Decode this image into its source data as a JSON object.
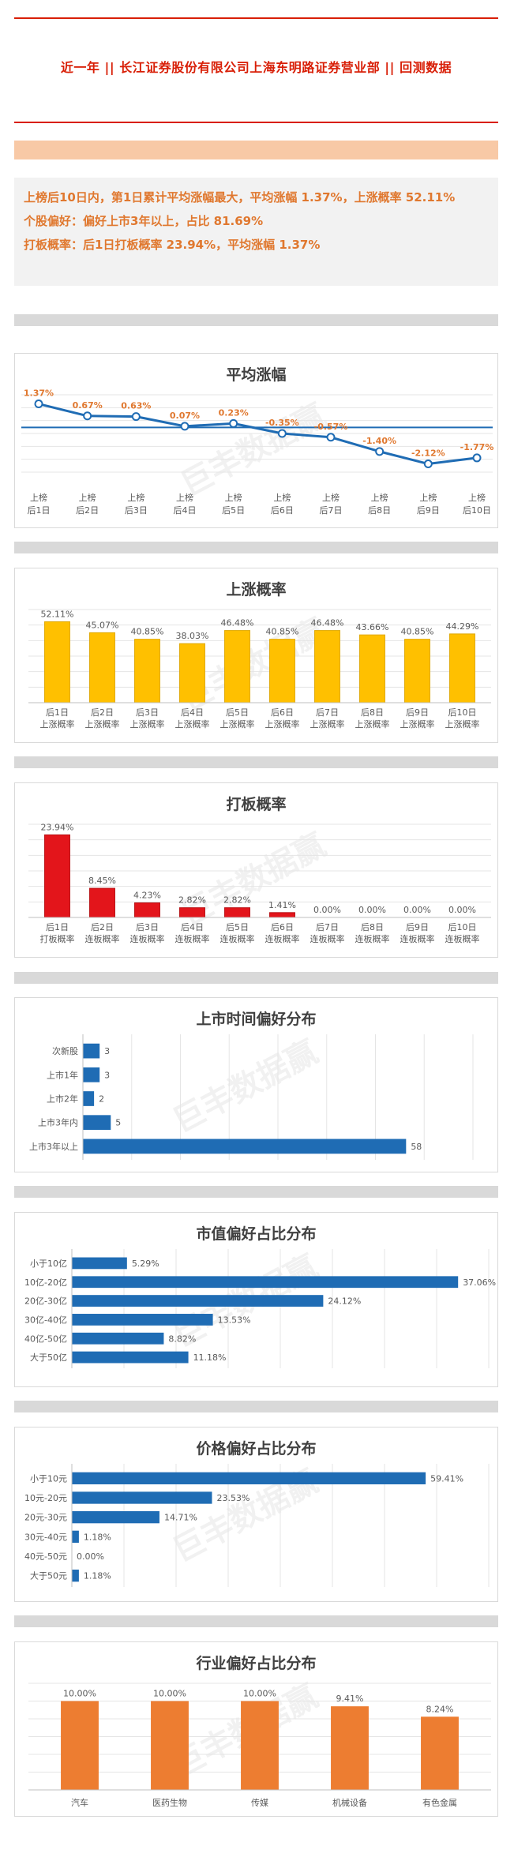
{
  "header": {
    "title": "近一年  ||  长江证券股份有限公司上海东明路证券营业部  ||  回测数据"
  },
  "summary": {
    "line1": "上榜后10日内，第1日累计平均涨幅最大，平均涨幅 1.37%，上涨概率 52.11%",
    "line2": "个股偏好：偏好上市3年以上，占比 81.69%",
    "line3": "打板概率：后1日打板概率 23.94%，平均涨幅 1.37%"
  },
  "watermark": "巨丰数据赢",
  "colors": {
    "accent_red": "#d81e06",
    "orange_text": "#e0782f",
    "line_blue": "#1f6cb4",
    "bar_yellow": "#ffc000",
    "bar_red": "#e3151b",
    "bar_blue": "#1f6cb4",
    "bar_orange": "#ed7d31"
  },
  "chart_data": [
    {
      "id": "avg-rise",
      "type": "line",
      "title": "平均涨幅",
      "categories": [
        [
          "上榜",
          "后1日"
        ],
        [
          "上榜",
          "后2日"
        ],
        [
          "上榜",
          "后3日"
        ],
        [
          "上榜",
          "后4日"
        ],
        [
          "上榜",
          "后5日"
        ],
        [
          "上榜",
          "后6日"
        ],
        [
          "上榜",
          "后7日"
        ],
        [
          "上榜",
          "后8日"
        ],
        [
          "上榜",
          "后9日"
        ],
        [
          "上榜",
          "后10日"
        ]
      ],
      "values": [
        1.37,
        0.67,
        0.63,
        0.07,
        0.23,
        -0.35,
        -0.57,
        -1.4,
        -2.12,
        -1.77
      ],
      "labels": [
        "1.37%",
        "0.67%",
        "0.63%",
        "0.07%",
        "0.23%",
        "-0.35%",
        "-0.57%",
        "-1.40%",
        "-2.12%",
        "-1.77%"
      ],
      "baseline": 0,
      "ylim": [
        -2.6,
        1.9
      ]
    },
    {
      "id": "up-prob",
      "type": "bar",
      "title": "上涨概率",
      "categories": [
        [
          "后1日",
          "上涨概率"
        ],
        [
          "后2日",
          "上涨概率"
        ],
        [
          "后3日",
          "上涨概率"
        ],
        [
          "后4日",
          "上涨概率"
        ],
        [
          "后5日",
          "上涨概率"
        ],
        [
          "后6日",
          "上涨概率"
        ],
        [
          "后7日",
          "上涨概率"
        ],
        [
          "后8日",
          "上涨概率"
        ],
        [
          "后9日",
          "上涨概率"
        ],
        [
          "后10日",
          "上涨概率"
        ]
      ],
      "values": [
        52.11,
        45.07,
        40.85,
        38.03,
        46.48,
        40.85,
        46.48,
        43.66,
        40.85,
        44.29
      ],
      "labels": [
        "52.11%",
        "45.07%",
        "40.85%",
        "38.03%",
        "46.48%",
        "40.85%",
        "46.48%",
        "43.66%",
        "40.85%",
        "44.29%"
      ],
      "ylim": [
        0,
        60
      ]
    },
    {
      "id": "board-prob",
      "type": "bar",
      "title": "打板概率",
      "categories": [
        [
          "后1日",
          "打板概率"
        ],
        [
          "后2日",
          "连板概率"
        ],
        [
          "后3日",
          "连板概率"
        ],
        [
          "后4日",
          "连板概率"
        ],
        [
          "后5日",
          "连板概率"
        ],
        [
          "后6日",
          "连板概率"
        ],
        [
          "后7日",
          "连板概率"
        ],
        [
          "后8日",
          "连板概率"
        ],
        [
          "后9日",
          "连板概率"
        ],
        [
          "后10日",
          "连板概率"
        ]
      ],
      "values": [
        23.94,
        8.45,
        4.23,
        2.82,
        2.82,
        1.41,
        0,
        0,
        0,
        0
      ],
      "labels": [
        "23.94%",
        "8.45%",
        "4.23%",
        "2.82%",
        "2.82%",
        "1.41%",
        "0.00%",
        "0.00%",
        "0.00%",
        "0.00%"
      ],
      "ylim": [
        0,
        27
      ]
    },
    {
      "id": "listing-time",
      "type": "bar",
      "orientation": "horizontal",
      "title": "上市时间偏好分布",
      "categories": [
        "次新股",
        "上市1年",
        "上市2年",
        "上市3年内",
        "上市3年以上"
      ],
      "values": [
        3,
        3,
        2,
        5,
        58
      ],
      "labels": [
        "3",
        "3",
        "2",
        "5",
        "58"
      ],
      "xlim": [
        0,
        70
      ]
    },
    {
      "id": "market-cap",
      "type": "bar",
      "orientation": "horizontal",
      "title": "市值偏好占比分布",
      "categories": [
        "小于10亿",
        "10亿-20亿",
        "20亿-30亿",
        "30亿-40亿",
        "40亿-50亿",
        "大于50亿"
      ],
      "values": [
        5.29,
        37.06,
        24.12,
        13.53,
        8.82,
        11.18
      ],
      "labels": [
        "5.29%",
        "37.06%",
        "24.12%",
        "13.53%",
        "8.82%",
        "11.18%"
      ],
      "xlim": [
        0,
        40
      ]
    },
    {
      "id": "price",
      "type": "bar",
      "orientation": "horizontal",
      "title": "价格偏好占比分布",
      "categories": [
        "小于10元",
        "10元-20元",
        "20元-30元",
        "30元-40元",
        "40元-50元",
        "大于50元"
      ],
      "values": [
        59.41,
        23.53,
        14.71,
        1.18,
        0,
        1.18
      ],
      "labels": [
        "59.41%",
        "23.53%",
        "14.71%",
        "1.18%",
        "0.00%",
        "1.18%"
      ],
      "xlim": [
        0,
        70
      ]
    },
    {
      "id": "industry",
      "type": "bar",
      "title": "行业偏好占比分布",
      "categories": [
        "汽车",
        "医药生物",
        "传媒",
        "机械设备",
        "有色金属"
      ],
      "values": [
        10.0,
        10.0,
        10.0,
        9.41,
        8.24
      ],
      "labels": [
        "10.00%",
        "10.00%",
        "10.00%",
        "9.41%",
        "8.24%"
      ],
      "ylim": [
        0,
        12
      ]
    }
  ]
}
